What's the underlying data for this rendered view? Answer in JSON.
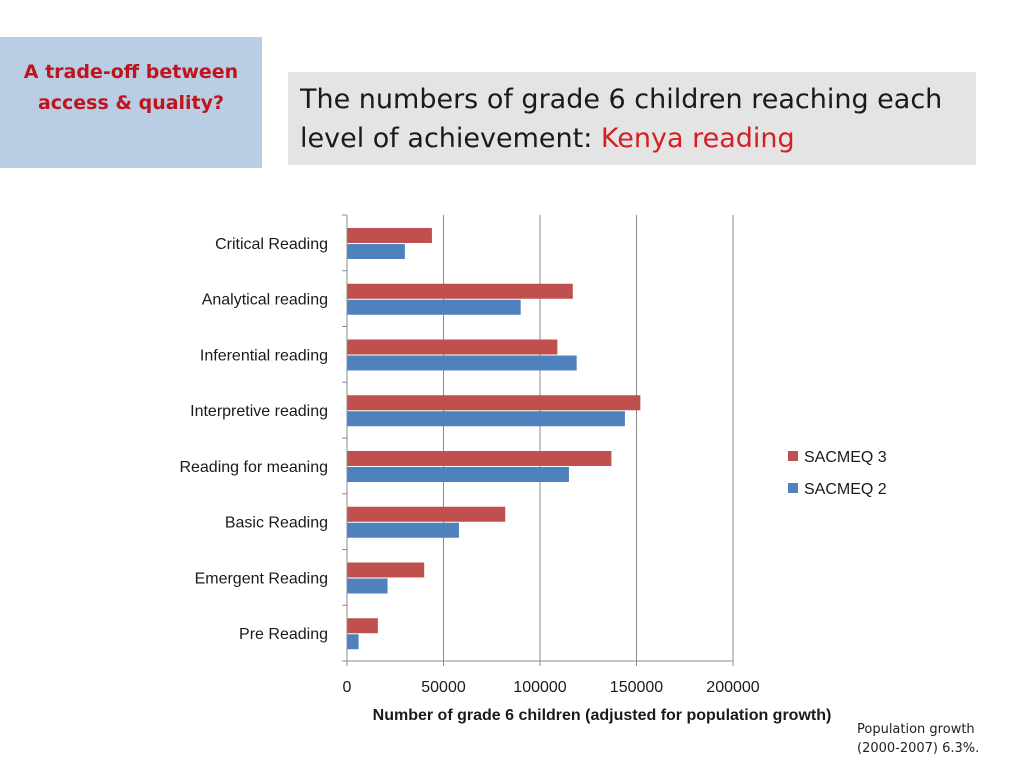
{
  "side_note": "A trade-off between access & quality?",
  "header": {
    "title_main": "The numbers of grade 6 children reaching each level of achievement:",
    "title_accent": "Kenya reading"
  },
  "footnote": "Population growth (2000-2007) 6.3%.",
  "colors": {
    "sacmeq3": "#c0504d",
    "sacmeq2": "#4f81bd",
    "accent": "#d41f24",
    "side_bg": "#b9cde4",
    "title_bg": "#e4e4e4"
  },
  "chart_data": {
    "type": "bar",
    "orientation": "horizontal",
    "title": "",
    "xlabel": "Number of grade 6 children (adjusted for population growth)",
    "ylabel": "",
    "xlim": [
      0,
      200000
    ],
    "xticks": [
      0,
      50000,
      100000,
      150000,
      200000
    ],
    "categories": [
      "Critical Reading",
      "Analytical reading",
      "Inferential reading",
      "Interpretive reading",
      "Reading for meaning",
      "Basic Reading",
      "Emergent Reading",
      "Pre Reading"
    ],
    "series": [
      {
        "name": "SACMEQ 3",
        "color": "#c0504d",
        "values": [
          44000,
          117000,
          109000,
          152000,
          137000,
          82000,
          40000,
          16000
        ]
      },
      {
        "name": "SACMEQ 2",
        "color": "#4f81bd",
        "values": [
          30000,
          90000,
          119000,
          144000,
          115000,
          58000,
          21000,
          6000
        ]
      }
    ],
    "legend": {
      "position": "right",
      "order": [
        "SACMEQ 3",
        "SACMEQ 2"
      ]
    },
    "grid": {
      "vertical": true,
      "horizontal": false
    }
  }
}
